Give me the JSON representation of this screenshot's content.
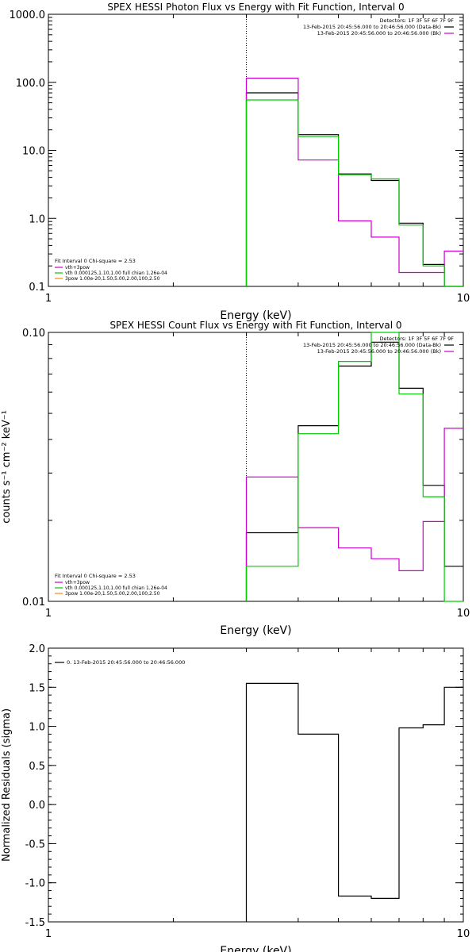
{
  "chart_data": [
    {
      "type": "line",
      "step": true,
      "title": "SPEX HESSI Photon Flux vs Energy with Fit Function, Interval 0",
      "xlabel": "Energy (keV)",
      "ylabel": "",
      "xscale": "log",
      "yscale": "log",
      "xlim": [
        1,
        10
      ],
      "ylim": [
        0.1,
        1000
      ],
      "xticks": [
        {
          "v": 1,
          "label": "1"
        },
        {
          "v": 10,
          "label": "10"
        }
      ],
      "yticks": [
        {
          "v": 0.1,
          "label": "0.1"
        },
        {
          "v": 1,
          "label": "1.0"
        },
        {
          "v": 10,
          "label": "10.0"
        },
        {
          "v": 100,
          "label": "100.0"
        },
        {
          "v": 1000,
          "label": "1000.0"
        }
      ],
      "vline": 3,
      "edges": [
        3,
        4,
        5,
        6,
        7,
        8,
        9,
        10
      ],
      "series": [
        {
          "name": "data",
          "color": "#000000",
          "values": [
            70,
            17,
            4.5,
            3.6,
            0.85,
            0.21,
            0.1
          ]
        },
        {
          "name": "vth+3pow",
          "color": "#cc00cc",
          "values": [
            115,
            7.2,
            0.92,
            0.53,
            0.16,
            0.16,
            0.33
          ]
        },
        {
          "name": "vth 0.000125,1.10,1.00 full chian 1.26e-04",
          "color": "#00cc00",
          "values": [
            55,
            16,
            4.4,
            3.8,
            0.8,
            0.2,
            0.08
          ]
        },
        {
          "name": "3pow 1.00e-20,1.50,5.00,2.00,100,2.50",
          "color": "#ff8800",
          "values": [
            null,
            null,
            null,
            null,
            null,
            null,
            null
          ]
        }
      ],
      "top_legend": {
        "lines": [
          {
            "text": "Detectors: 1F 3F 5F 6F 7F 9F",
            "color": ""
          },
          {
            "text": "13-Feb-2015 20:45:56.000 to 20:46:56.000 (Data-Bk)",
            "color": "#000000"
          },
          {
            "text": "13-Feb-2015 20:45:56.000 to 20:46:56.000 (Bk)",
            "color": "#cc00cc"
          }
        ]
      },
      "fit_legend": {
        "header": "Fit Interval  0   Chi-square = 2.53",
        "items": [
          {
            "text": "vth+3pow",
            "color": "#cc00cc"
          },
          {
            "text": "vth 0.000125,1.10,1.00  full chian 1.26e-04",
            "color": "#00cc00"
          },
          {
            "text": "3pow 1.00e-20,1.50,5.00,2.00,100,2.50",
            "color": "#ff8800"
          }
        ]
      }
    },
    {
      "type": "line",
      "step": true,
      "title": "SPEX HESSI Count Flux vs Energy with Fit Function, Interval 0",
      "xlabel": "Energy (keV)",
      "ylabel": "counts s⁻¹ cm⁻² keV⁻¹",
      "xscale": "log",
      "yscale": "log",
      "xlim": [
        1,
        10
      ],
      "ylim": [
        0.01,
        0.1
      ],
      "xticks": [
        {
          "v": 1,
          "label": "1"
        },
        {
          "v": 10,
          "label": "10"
        }
      ],
      "yticks": [
        {
          "v": 0.01,
          "label": "0.01"
        },
        {
          "v": 0.1,
          "label": "0.10"
        }
      ],
      "vline": 3,
      "edges": [
        3,
        4,
        5,
        6,
        7,
        8,
        9,
        10
      ],
      "series": [
        {
          "name": "data",
          "color": "#000000",
          "values": [
            0.018,
            0.045,
            0.075,
            0.092,
            0.062,
            0.027,
            0.0135
          ]
        },
        {
          "name": "vth+3pow",
          "color": "#cc00cc",
          "values": [
            0.029,
            0.0188,
            0.0158,
            0.0144,
            0.013,
            0.0198,
            0.044
          ]
        },
        {
          "name": "vth 0.000125,1.10,1.00 full chian 1.26e-04",
          "color": "#00cc00",
          "values": [
            0.0135,
            0.042,
            0.078,
            0.1,
            0.059,
            0.0245,
            0.0095
          ]
        },
        {
          "name": "3pow 1.00e-20,1.50,5.00,2.00,100,2.50",
          "color": "#ff8800",
          "values": [
            null,
            null,
            null,
            null,
            null,
            null,
            null
          ]
        }
      ],
      "top_legend": {
        "lines": [
          {
            "text": "Detectors: 1F 3F 5F 6F 7F 9F",
            "color": ""
          },
          {
            "text": "13-Feb-2015 20:45:56.000 to 20:46:56.000 (Data-Bk)",
            "color": "#000000"
          },
          {
            "text": "13-Feb-2015 20:45:56.000 to 20:46:56.000 (Bk)",
            "color": "#cc00cc"
          }
        ]
      },
      "fit_legend": {
        "header": "Fit Interval  0   Chi-square = 2.53",
        "items": [
          {
            "text": "vth+3pow",
            "color": "#cc00cc"
          },
          {
            "text": "vth 0.000125,1.10,1.00  full chian 1.26e-04",
            "color": "#00cc00"
          },
          {
            "text": "3pow 1.00e-20,1.50,5.00,2.00,100,2.50",
            "color": "#ff8800"
          }
        ]
      }
    },
    {
      "type": "line",
      "step": true,
      "title": "",
      "xlabel": "Energy (keV)",
      "ylabel": "Normalized Residuals (sigma)",
      "xscale": "log",
      "yscale": "linear",
      "xlim": [
        1,
        10
      ],
      "ylim": [
        -1.5,
        2.0
      ],
      "xticks": [
        {
          "v": 1,
          "label": "1"
        },
        {
          "v": 10,
          "label": "10"
        }
      ],
      "yticks": [
        {
          "v": -1.5,
          "label": "-1.5"
        },
        {
          "v": -1.0,
          "label": "-1.0"
        },
        {
          "v": -0.5,
          "label": "-0.5"
        },
        {
          "v": 0,
          "label": "0.0"
        },
        {
          "v": 0.5,
          "label": "0.5"
        },
        {
          "v": 1.0,
          "label": "1.0"
        },
        {
          "v": 1.5,
          "label": "1.5"
        },
        {
          "v": 2.0,
          "label": "2.0"
        }
      ],
      "vline": null,
      "edges": [
        3,
        4,
        5,
        6,
        7,
        8,
        9,
        10
      ],
      "series": [
        {
          "name": "0. 13-Feb-2015 20:45:56.000 to 20:46:56.000",
          "color": "#000000",
          "values": [
            1.55,
            0.9,
            -1.17,
            -1.2,
            0.98,
            1.02,
            1.5
          ]
        }
      ],
      "top_legend": null,
      "fit_legend": null,
      "residual_legend": {
        "text": "0. 13-Feb-2015 20:45:56.000 to 20:46:56.000",
        "color": "#000000"
      }
    }
  ]
}
